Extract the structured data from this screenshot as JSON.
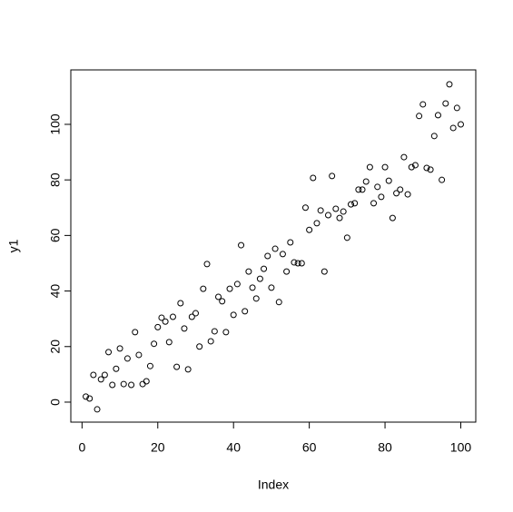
{
  "chart_data": {
    "type": "scatter",
    "x_label": "Index",
    "y_label": "y1",
    "x": [
      1,
      2,
      3,
      4,
      5,
      6,
      7,
      8,
      9,
      10,
      11,
      12,
      13,
      14,
      15,
      16,
      17,
      18,
      19,
      20,
      21,
      22,
      23,
      24,
      25,
      26,
      27,
      28,
      29,
      30,
      31,
      32,
      33,
      34,
      35,
      36,
      37,
      38,
      39,
      40,
      41,
      42,
      43,
      44,
      45,
      46,
      47,
      48,
      49,
      50,
      51,
      52,
      53,
      54,
      55,
      56,
      57,
      58,
      59,
      60,
      61,
      62,
      63,
      64,
      65,
      66,
      67,
      68,
      69,
      70,
      71,
      72,
      73,
      74,
      75,
      76,
      77,
      78,
      79,
      80,
      81,
      82,
      83,
      84,
      85,
      86,
      87,
      88,
      89,
      90,
      91,
      92,
      93,
      94,
      95,
      96,
      97,
      98,
      99,
      100
    ],
    "values": [
      2,
      1.3,
      9.8,
      -2.6,
      8.2,
      9.8,
      18,
      6.2,
      12,
      19.3,
      6.5,
      15.7,
      6.2,
      25.2,
      17,
      6.5,
      7.5,
      13,
      21,
      27,
      30.4,
      29,
      21.6,
      30.7,
      12.7,
      35.6,
      26.5,
      11.8,
      30.7,
      32,
      20,
      40.8,
      49.7,
      21.9,
      25.5,
      37.9,
      36.3,
      25.2,
      40.8,
      31.4,
      42.5,
      56.5,
      32.7,
      47,
      41.2,
      37.3,
      44.4,
      48,
      52.6,
      41.2,
      55.2,
      36,
      53.3,
      47,
      57.5,
      50.3,
      50,
      50,
      70,
      62,
      80.7,
      64.4,
      69,
      47,
      67.3,
      81.4,
      69.6,
      66.3,
      68.6,
      59.2,
      71.2,
      71.6,
      76.5,
      76.5,
      79.4,
      84.6,
      71.6,
      77.5,
      73.9,
      84.6,
      79.7,
      66.3,
      75.2,
      76.5,
      88.2,
      74.8,
      84.6,
      85.3,
      103,
      107.2,
      84.3,
      83.7,
      95.8,
      103.3,
      80,
      107.5,
      114.4,
      98.7,
      105.9,
      100
    ],
    "color": "#000000",
    "xlim": [
      -2.96,
      103.96
    ],
    "ylim": [
      -7.2,
      119.6
    ],
    "xticks": [
      0,
      20,
      40,
      60,
      80,
      100
    ],
    "yticks": [
      0,
      20,
      40,
      60,
      80,
      100
    ]
  }
}
